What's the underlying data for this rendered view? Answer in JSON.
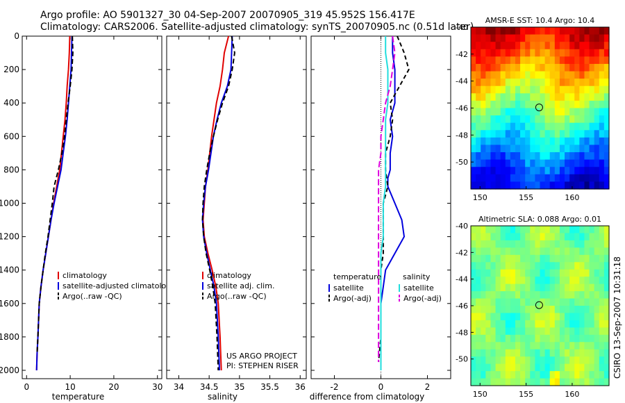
{
  "header": {
    "title_line1": "Argo profile: AO 5901327_30 04-Sep-2007 20070905_319 45.952S 156.417E",
    "title_line2": "Climatology: CARS2006. Satellite-adjusted climatology: synTS_20070905.nc (0.51d later)"
  },
  "colors": {
    "climatology": "#e00000",
    "satellite": "#0000dd",
    "argo": "#000000",
    "salinity_satellite": "#22dddd",
    "salinity_argo": "#dd00dd"
  },
  "credit": {
    "text": "CSIRO 13-Sep-2007 10:31:18"
  },
  "project_note": {
    "line1": "US ARGO PROJECT",
    "line2": "PI: STEPHEN RISER"
  },
  "chart_data": [
    {
      "id": "temperature",
      "type": "line",
      "xlabel": "temperature",
      "xlim": [
        -1,
        31
      ],
      "ylim": [
        0,
        2050
      ],
      "y_reversed": true,
      "xticks": [
        0,
        10,
        20,
        30
      ],
      "yticks": [
        0,
        200,
        400,
        600,
        800,
        1000,
        1200,
        1400,
        1600,
        1800,
        2000
      ],
      "legend": [
        "climatology",
        "satellite-adjusted climatology",
        "Argo(..raw -QC)"
      ],
      "series": [
        {
          "name": "climatology",
          "color": "#e00000",
          "dash": "",
          "x": [
            9.9,
            9.8,
            9.6,
            9.3,
            9.1,
            8.8,
            8.4,
            8.0,
            7.6,
            6.9,
            6.2,
            5.6,
            5.0,
            4.4,
            3.8,
            3.3,
            2.9,
            2.6,
            2.4,
            2.3
          ],
          "y": [
            0,
            100,
            200,
            300,
            400,
            500,
            600,
            700,
            800,
            900,
            1000,
            1100,
            1200,
            1300,
            1400,
            1500,
            1600,
            1800,
            1900,
            2000
          ]
        },
        {
          "name": "satellite-adjusted climatology",
          "color": "#0000dd",
          "dash": "",
          "x": [
            10.4,
            10.3,
            10.2,
            9.9,
            9.6,
            9.3,
            8.9,
            8.4,
            7.9,
            7.1,
            6.3,
            5.6,
            5.0,
            4.4,
            3.8,
            3.3,
            2.9,
            2.6,
            2.4,
            2.3
          ],
          "y": [
            0,
            100,
            200,
            300,
            400,
            500,
            600,
            700,
            800,
            900,
            1000,
            1100,
            1200,
            1300,
            1400,
            1500,
            1600,
            1800,
            1900,
            2000
          ]
        },
        {
          "name": "Argo(..raw -QC)",
          "color": "#000000",
          "dash": "7,4",
          "x": [
            10.5,
            10.6,
            10.4,
            10.0,
            9.5,
            9.1,
            8.7,
            8.1,
            7.3,
            6.3,
            5.9,
            5.4,
            4.9,
            4.3,
            3.8,
            3.3,
            2.9,
            2.6,
            2.4
          ],
          "y": [
            0,
            100,
            200,
            300,
            400,
            500,
            600,
            700,
            800,
            900,
            1000,
            1100,
            1200,
            1300,
            1400,
            1500,
            1600,
            1800,
            1900
          ]
        }
      ]
    },
    {
      "id": "salinity",
      "type": "line",
      "xlabel": "salinity",
      "xlim": [
        33.8,
        36.1
      ],
      "ylim": [
        0,
        2050
      ],
      "y_reversed": true,
      "xticks": [
        34,
        34.5,
        35,
        35.5,
        36
      ],
      "legend": [
        "climatology",
        "satellite adj. clim.",
        "Argo(..raw -QC)"
      ],
      "series": [
        {
          "name": "climatology",
          "color": "#e00000",
          "dash": "",
          "x": [
            34.82,
            34.75,
            34.72,
            34.68,
            34.62,
            34.58,
            34.54,
            34.51,
            34.48,
            34.44,
            34.42,
            34.4,
            34.42,
            34.48,
            34.55,
            34.61,
            34.65,
            34.68,
            34.7
          ],
          "y": [
            0,
            100,
            200,
            300,
            400,
            500,
            600,
            700,
            800,
            900,
            1000,
            1100,
            1200,
            1300,
            1400,
            1500,
            1600,
            1800,
            2000
          ]
        },
        {
          "name": "satellite adj. clim.",
          "color": "#0000dd",
          "dash": "",
          "x": [
            34.88,
            34.87,
            34.86,
            34.8,
            34.7,
            34.63,
            34.57,
            34.53,
            34.49,
            34.44,
            34.41,
            34.39,
            34.41,
            34.46,
            34.52,
            34.58,
            34.62,
            34.65,
            34.67
          ],
          "y": [
            0,
            100,
            200,
            300,
            400,
            500,
            600,
            700,
            800,
            900,
            1000,
            1100,
            1200,
            1300,
            1400,
            1500,
            1600,
            1800,
            2000
          ]
        },
        {
          "name": "Argo(..raw -QC)",
          "color": "#000000",
          "dash": "7,4",
          "x": [
            34.87,
            34.92,
            34.88,
            34.82,
            34.72,
            34.64,
            34.57,
            34.51,
            34.46,
            34.42,
            34.4,
            34.39,
            34.41,
            34.45,
            34.51,
            34.56,
            34.6,
            34.63,
            34.65
          ],
          "y": [
            0,
            100,
            200,
            300,
            400,
            500,
            600,
            700,
            800,
            900,
            1000,
            1100,
            1200,
            1300,
            1400,
            1500,
            1600,
            1800,
            2000
          ]
        }
      ]
    },
    {
      "id": "difference",
      "type": "line",
      "xlabel": "difference from climatology",
      "xlim": [
        -3,
        3
      ],
      "ylim": [
        0,
        2050
      ],
      "y_reversed": true,
      "xticks": [
        -2,
        0,
        2
      ],
      "zero_line": true,
      "legend_left_title": "temperature",
      "legend_right_title": "salinity",
      "legend_left": [
        "satellite",
        "Argo(-adj)"
      ],
      "legend_right": [
        "satellite",
        "Argo(-adj)"
      ],
      "series": [
        {
          "name": "satellite",
          "group": "temperature",
          "color": "#0000dd",
          "dash": "",
          "x": [
            0.5,
            0.5,
            0.6,
            0.6,
            0.4,
            0.5,
            0.4,
            0.4,
            0.3,
            0.3,
            0.6,
            0.9,
            1.0,
            0.6,
            0.2,
            0.1,
            0.0,
            0.0,
            0.0
          ],
          "y": [
            0,
            100,
            200,
            400,
            500,
            600,
            700,
            800,
            850,
            900,
            1000,
            1100,
            1200,
            1300,
            1400,
            1500,
            1600,
            1800,
            2000
          ]
        },
        {
          "name": "Argo(-adj)",
          "group": "temperature",
          "color": "#000000",
          "dash": "6,4",
          "x": [
            0.7,
            1.0,
            1.2,
            0.8,
            0.4,
            0.5,
            0.4,
            0.2,
            0.2,
            0.3,
            0.1,
            0.1,
            0.1,
            0.1,
            0.0,
            0.0,
            0.0,
            -0.1
          ],
          "y": [
            0,
            100,
            200,
            300,
            400,
            500,
            600,
            700,
            800,
            900,
            1000,
            1100,
            1200,
            1300,
            1400,
            1600,
            1800,
            1950
          ]
        },
        {
          "name": "satellite",
          "group": "salinity",
          "color": "#22dddd",
          "dash": "",
          "x": [
            0.2,
            0.2,
            0.3,
            0.3,
            0.3,
            0.2,
            0.2,
            0.2,
            0.2,
            0.2,
            0.1,
            0.1,
            0.1,
            0.0,
            0.0,
            0.0,
            0.0,
            0.0
          ],
          "y": [
            0,
            100,
            200,
            300,
            400,
            500,
            600,
            700,
            800,
            900,
            1000,
            1100,
            1200,
            1300,
            1400,
            1600,
            1800,
            2000
          ]
        },
        {
          "name": "Argo(-adj)",
          "group": "salinity",
          "color": "#dd00dd",
          "dash": "9,4",
          "x": [
            0.5,
            0.6,
            0.5,
            0.4,
            0.2,
            0.1,
            0.0,
            0.0,
            -0.1,
            -0.1,
            -0.1,
            -0.1,
            -0.1,
            -0.1,
            -0.1,
            -0.1,
            -0.1
          ],
          "y": [
            0,
            100,
            200,
            300,
            400,
            500,
            600,
            700,
            800,
            900,
            1000,
            1200,
            1400,
            1500,
            1600,
            1800,
            1950
          ]
        }
      ]
    },
    {
      "id": "sst_map",
      "type": "heatmap",
      "title": "AMSR-E SST: 10.4 Argo: 10.4",
      "xlim": [
        149,
        164
      ],
      "ylim": [
        -52,
        -40
      ],
      "xticks": [
        150,
        155,
        160
      ],
      "yticks": [
        -40,
        -42,
        -44,
        -46,
        -48,
        -50
      ],
      "marker": {
        "lon": 156.417,
        "lat": -45.952
      }
    },
    {
      "id": "sla_map",
      "type": "heatmap",
      "title": "Altimetric SLA: 0.088 Argo: 0.01",
      "xlim": [
        149,
        164
      ],
      "ylim": [
        -52,
        -40
      ],
      "xticks": [
        150,
        155,
        160
      ],
      "yticks": [
        -40,
        -42,
        -44,
        -46,
        -48,
        -50
      ],
      "marker": {
        "lon": 156.417,
        "lat": -45.952
      }
    }
  ]
}
